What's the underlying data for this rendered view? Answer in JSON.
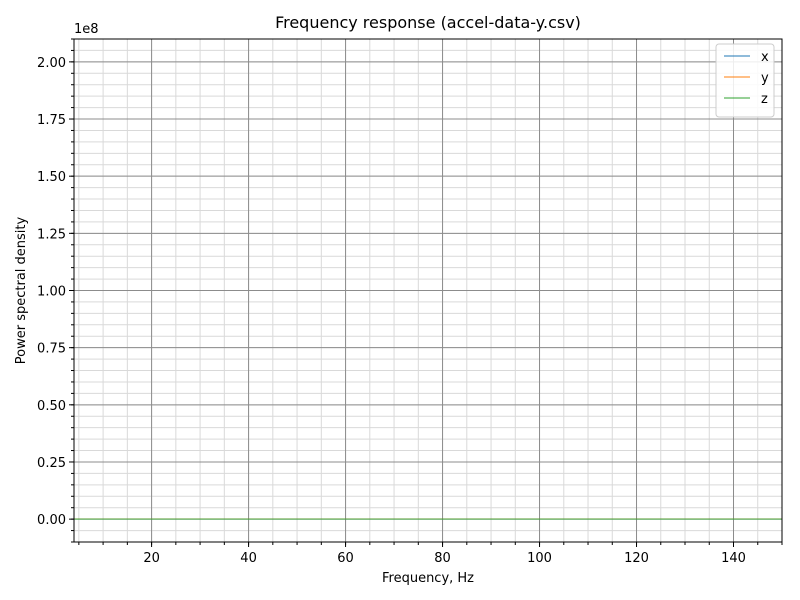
{
  "chart_data": {
    "type": "line",
    "title": "Frequency response (accel-data-y.csv)",
    "xlabel": "Frequency, Hz",
    "ylabel": "Power spectral density",
    "y_scale_label": "1e8",
    "y_scale": 100000000,
    "xlim": [
      4,
      150
    ],
    "ylim": [
      -10000000,
      210000000
    ],
    "x_ticks": [
      20,
      40,
      60,
      80,
      100,
      120,
      140
    ],
    "x_tick_labels": [
      "20",
      "40",
      "60",
      "80",
      "100",
      "120",
      "140"
    ],
    "x_minor_step": 5,
    "y_ticks": [
      0,
      25000000,
      50000000,
      75000000,
      100000000,
      125000000,
      150000000,
      175000000,
      200000000
    ],
    "y_tick_labels": [
      "0.00",
      "0.25",
      "0.50",
      "0.75",
      "1.00",
      "1.25",
      "1.50",
      "1.75",
      "2.00"
    ],
    "y_minor_step": 5000000,
    "grid": true,
    "legend_position": "top-right",
    "series": [
      {
        "name": "x",
        "color": "#1f77b4",
        "points": [
          [
            4,
            0
          ],
          [
            10,
            0
          ],
          [
            15,
            0.2
          ],
          [
            18,
            0.6
          ],
          [
            20,
            1.2
          ],
          [
            22,
            2
          ],
          [
            24,
            3.5
          ],
          [
            26,
            5.5
          ],
          [
            27,
            7
          ],
          [
            28,
            16
          ],
          [
            29,
            14
          ],
          [
            30,
            20
          ],
          [
            31,
            25
          ],
          [
            32,
            15
          ],
          [
            33,
            5
          ],
          [
            34,
            7
          ],
          [
            35,
            12
          ],
          [
            36,
            16
          ],
          [
            37,
            19
          ],
          [
            38,
            24
          ],
          [
            39,
            12
          ],
          [
            40,
            6
          ],
          [
            41,
            6
          ],
          [
            42,
            8
          ],
          [
            43,
            10
          ],
          [
            44,
            11
          ],
          [
            45,
            11
          ],
          [
            46,
            9
          ],
          [
            47,
            9
          ],
          [
            48,
            10
          ],
          [
            49,
            13
          ],
          [
            50,
            26
          ],
          [
            51,
            40
          ],
          [
            52,
            62
          ],
          [
            53,
            90
          ],
          [
            54,
            105
          ],
          [
            55,
            115
          ],
          [
            56,
            60
          ],
          [
            57,
            25
          ],
          [
            58,
            10
          ],
          [
            59,
            8
          ],
          [
            60,
            10
          ],
          [
            61,
            8
          ],
          [
            62,
            6
          ],
          [
            63,
            8
          ],
          [
            64,
            14
          ],
          [
            65,
            51
          ],
          [
            66,
            52
          ],
          [
            67,
            57
          ],
          [
            68,
            53
          ],
          [
            69,
            43
          ],
          [
            70,
            34
          ],
          [
            71,
            26
          ],
          [
            72,
            23
          ],
          [
            73,
            18
          ],
          [
            74,
            15
          ],
          [
            75,
            17
          ],
          [
            76,
            15
          ],
          [
            77,
            12
          ],
          [
            78,
            12
          ],
          [
            79,
            11
          ],
          [
            80,
            10
          ],
          [
            81,
            9
          ],
          [
            82,
            10
          ],
          [
            83,
            10
          ],
          [
            84,
            9
          ],
          [
            85,
            6
          ],
          [
            90,
            4.5
          ],
          [
            95,
            2.5
          ],
          [
            98,
            1.5
          ],
          [
            100,
            1
          ],
          [
            104,
            2
          ],
          [
            108,
            1
          ],
          [
            112,
            2
          ],
          [
            114,
            5
          ],
          [
            116,
            4
          ],
          [
            118,
            5
          ],
          [
            119,
            5.5
          ],
          [
            122,
            4
          ],
          [
            126,
            3
          ],
          [
            128,
            2.5
          ],
          [
            129,
            1.5
          ],
          [
            130,
            4
          ],
          [
            132,
            2.5
          ],
          [
            136,
            3
          ],
          [
            140,
            2
          ],
          [
            146,
            0.5
          ],
          [
            150,
            0.2
          ]
        ]
      },
      {
        "name": "y",
        "color": "#ff7f0e",
        "points": [
          [
            4,
            0.1
          ],
          [
            10,
            0.3
          ],
          [
            14,
            1
          ],
          [
            16,
            2
          ],
          [
            17,
            2
          ],
          [
            18,
            4
          ],
          [
            19,
            3
          ],
          [
            20,
            1
          ],
          [
            22,
            0.5
          ],
          [
            25,
            0.5
          ],
          [
            27,
            1.5
          ],
          [
            29,
            5
          ],
          [
            30,
            8
          ],
          [
            31,
            12
          ],
          [
            32,
            19
          ],
          [
            33,
            20
          ],
          [
            34,
            14
          ],
          [
            35,
            8
          ],
          [
            36,
            10
          ],
          [
            37,
            20
          ],
          [
            38,
            24
          ],
          [
            39,
            12
          ],
          [
            40,
            7
          ],
          [
            41,
            8
          ],
          [
            42,
            10
          ],
          [
            43,
            13
          ],
          [
            44,
            15
          ],
          [
            45,
            14
          ],
          [
            46,
            12
          ],
          [
            47,
            12
          ],
          [
            48,
            17
          ],
          [
            49,
            25
          ],
          [
            50,
            45
          ],
          [
            51,
            75
          ],
          [
            52,
            100
          ],
          [
            53,
            120
          ],
          [
            54,
            150
          ],
          [
            55,
            180
          ],
          [
            56,
            100
          ],
          [
            57,
            40
          ],
          [
            58,
            17
          ],
          [
            59,
            15
          ],
          [
            60,
            18
          ],
          [
            61,
            13
          ],
          [
            62,
            9
          ],
          [
            63,
            8
          ],
          [
            64,
            20
          ],
          [
            65,
            83
          ],
          [
            66,
            81
          ],
          [
            67,
            91
          ],
          [
            68,
            87
          ],
          [
            69,
            75
          ],
          [
            70,
            55
          ],
          [
            71,
            42
          ],
          [
            72,
            35
          ],
          [
            73,
            26
          ],
          [
            74,
            36
          ],
          [
            75,
            41
          ],
          [
            76,
            38
          ],
          [
            77,
            38
          ],
          [
            78,
            37
          ],
          [
            79,
            37
          ],
          [
            80,
            36
          ],
          [
            81,
            36
          ],
          [
            82,
            35
          ],
          [
            83,
            32
          ],
          [
            84,
            32
          ],
          [
            85,
            27
          ],
          [
            86,
            25
          ],
          [
            88,
            21
          ],
          [
            90,
            18
          ],
          [
            92,
            14
          ],
          [
            94,
            11
          ],
          [
            95,
            9
          ],
          [
            96,
            5
          ],
          [
            97,
            4.5
          ],
          [
            98,
            4
          ],
          [
            100,
            3
          ],
          [
            102,
            1
          ],
          [
            105,
            0.5
          ],
          [
            110,
            0.5
          ],
          [
            115,
            1.5
          ],
          [
            120,
            0.5
          ],
          [
            130,
            0.3
          ],
          [
            140,
            0.2
          ],
          [
            150,
            0.1
          ]
        ]
      },
      {
        "name": "z",
        "color": "#2ca02c",
        "points": [
          [
            4,
            0
          ],
          [
            10,
            0
          ],
          [
            15,
            0
          ],
          [
            18,
            0
          ],
          [
            20,
            1
          ],
          [
            22,
            2
          ],
          [
            24,
            4
          ],
          [
            25,
            5
          ],
          [
            26,
            7
          ],
          [
            27,
            8
          ],
          [
            28,
            12
          ],
          [
            29,
            10
          ],
          [
            30,
            15
          ],
          [
            31,
            25
          ],
          [
            32,
            35
          ],
          [
            33,
            62
          ],
          [
            34,
            78
          ],
          [
            35,
            81
          ],
          [
            36,
            110
          ],
          [
            37,
            147
          ],
          [
            38,
            127
          ],
          [
            39,
            50
          ],
          [
            40,
            17
          ],
          [
            41,
            9
          ],
          [
            42,
            8
          ],
          [
            43,
            7
          ],
          [
            44,
            6
          ],
          [
            45,
            5
          ],
          [
            46,
            4
          ],
          [
            47,
            3
          ],
          [
            48,
            3
          ],
          [
            49,
            3
          ],
          [
            50,
            5
          ],
          [
            51,
            4.5
          ],
          [
            52,
            3
          ],
          [
            53,
            1.5
          ],
          [
            54,
            0.5
          ],
          [
            55,
            1
          ],
          [
            56,
            5
          ],
          [
            57,
            6
          ],
          [
            58,
            8
          ],
          [
            59,
            11
          ],
          [
            60,
            13
          ],
          [
            61,
            16
          ],
          [
            62,
            21
          ],
          [
            63,
            27
          ],
          [
            64,
            60
          ],
          [
            65,
            195
          ],
          [
            66,
            175
          ],
          [
            67,
            150
          ],
          [
            68,
            145
          ],
          [
            69,
            120
          ],
          [
            70,
            95
          ],
          [
            71,
            78
          ],
          [
            72,
            67
          ],
          [
            73,
            48
          ],
          [
            74,
            30
          ],
          [
            75,
            26
          ],
          [
            76,
            29
          ],
          [
            77,
            27
          ],
          [
            78,
            23
          ],
          [
            79,
            19
          ],
          [
            80,
            15
          ],
          [
            81,
            11
          ],
          [
            82,
            7
          ],
          [
            83,
            6
          ],
          [
            84,
            5
          ],
          [
            85,
            2
          ],
          [
            90,
            1.5
          ],
          [
            95,
            1.2
          ],
          [
            98,
            0.5
          ],
          [
            102,
            0.3
          ],
          [
            110,
            0.2
          ],
          [
            120,
            0.1
          ],
          [
            130,
            0.1
          ],
          [
            140,
            0.1
          ],
          [
            150,
            0.1
          ]
        ]
      }
    ]
  }
}
